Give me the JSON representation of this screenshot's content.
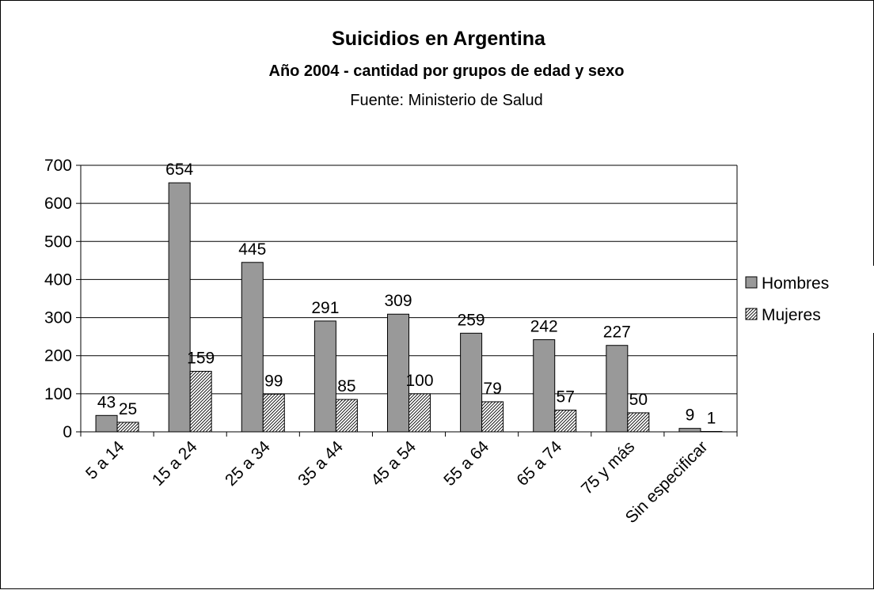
{
  "chart_data": {
    "type": "bar",
    "title": "Suicidios en Argentina",
    "subtitle": "Año 2004 - cantidad por grupos de edad y sexo",
    "source": "Fuente: Ministerio de Salud",
    "categories": [
      "5 a 14",
      "15 a 24",
      "25 a 34",
      "35 a 44",
      "45 a 54",
      "55 a 64",
      "65 a 74",
      "75 y más",
      "Sin especificar"
    ],
    "series": [
      {
        "name": "Hombres",
        "values": [
          43,
          654,
          445,
          291,
          309,
          259,
          242,
          227,
          9
        ],
        "color": "#999999",
        "pattern": "solid"
      },
      {
        "name": "Mujeres",
        "values": [
          25,
          159,
          99,
          85,
          100,
          79,
          57,
          50,
          1
        ],
        "color": "#ffffff",
        "pattern": "diagonal-hatch"
      }
    ],
    "ylim": [
      0,
      700
    ],
    "yticks": [
      0,
      100,
      200,
      300,
      400,
      500,
      600,
      700
    ],
    "grid": true,
    "legend_position": "right",
    "xlabel": "",
    "ylabel": ""
  }
}
